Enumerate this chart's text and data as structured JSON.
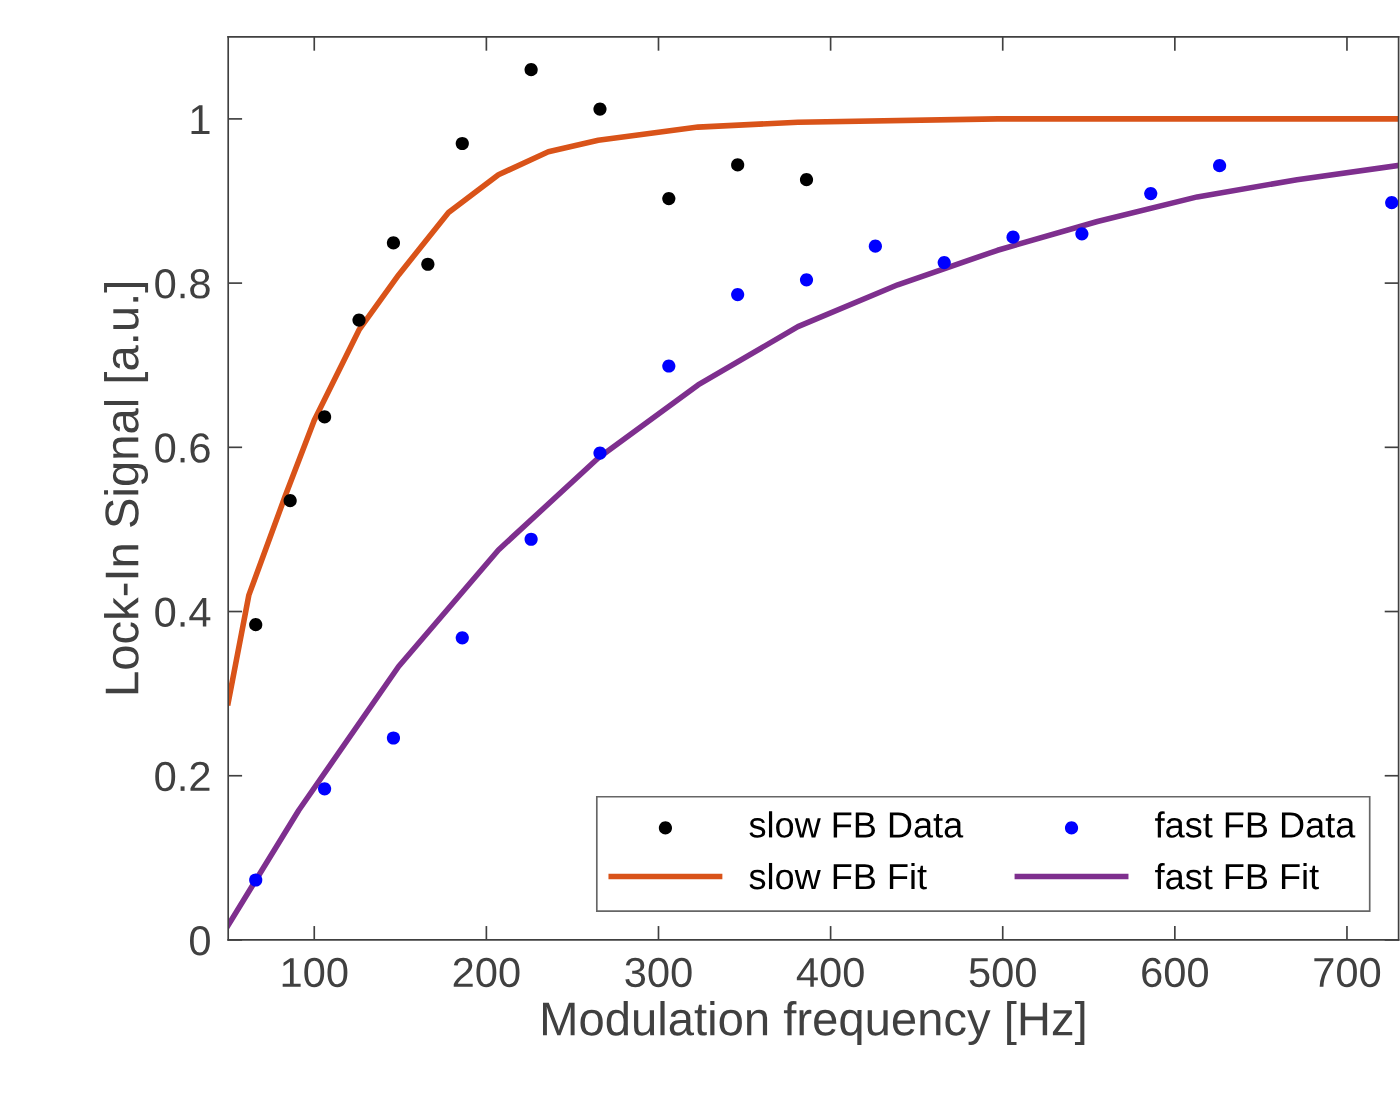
{
  "chart_data": {
    "type": "scatter",
    "xlabel": "Modulation frequency [Hz]",
    "ylabel": "Lock-In Signal [a.u.]",
    "xlim": [
      50,
      730
    ],
    "ylim": [
      0,
      1.1
    ],
    "xticks": [
      100,
      200,
      300,
      400,
      500,
      600,
      700
    ],
    "yticks": [
      0,
      0.2,
      0.4,
      0.6,
      0.8,
      1
    ],
    "grid": false,
    "legend": "bottom right",
    "series": [
      {
        "name": "slow FB Data",
        "marker": "circle",
        "color": "#000000",
        "x": [
          66,
          86,
          106,
          126,
          146,
          166,
          186,
          226,
          266,
          306,
          346,
          386
        ],
        "values": [
          0.384,
          0.535,
          0.637,
          0.755,
          0.849,
          0.823,
          0.97,
          1.06,
          1.012,
          0.903,
          0.944,
          0.926
        ]
      },
      {
        "name": "fast FB Data",
        "marker": "circle",
        "color": "#0000ff",
        "x": [
          66,
          106,
          146,
          186,
          226,
          266,
          306,
          346,
          386,
          426,
          466,
          506,
          546,
          586,
          626,
          726
        ],
        "values": [
          0.073,
          0.184,
          0.246,
          0.368,
          0.488,
          0.593,
          0.699,
          0.786,
          0.804,
          0.845,
          0.825,
          0.856,
          0.86,
          0.909,
          0.943,
          0.898
        ]
      },
      {
        "name": "slow FB Fit",
        "type": "line",
        "color": "#d95319",
        "x": [
          50,
          62,
          83,
          100,
          126,
          149,
          178,
          207,
          236,
          265,
          323,
          381,
          497,
          729
        ],
        "values": [
          0.289,
          0.42,
          0.54,
          0.633,
          0.743,
          0.81,
          0.886,
          0.932,
          0.96,
          0.974,
          0.99,
          0.996,
          1.0,
          1.0
        ]
      },
      {
        "name": "fast FB Fit",
        "type": "line",
        "color": "#7e2f8e",
        "x": [
          50,
          91,
          149,
          207,
          265,
          323,
          381,
          439,
          497,
          555,
          613,
          671,
          729
        ],
        "values": [
          0.018,
          0.158,
          0.333,
          0.475,
          0.587,
          0.676,
          0.747,
          0.798,
          0.84,
          0.875,
          0.905,
          0.926,
          0.943
        ]
      }
    ]
  }
}
